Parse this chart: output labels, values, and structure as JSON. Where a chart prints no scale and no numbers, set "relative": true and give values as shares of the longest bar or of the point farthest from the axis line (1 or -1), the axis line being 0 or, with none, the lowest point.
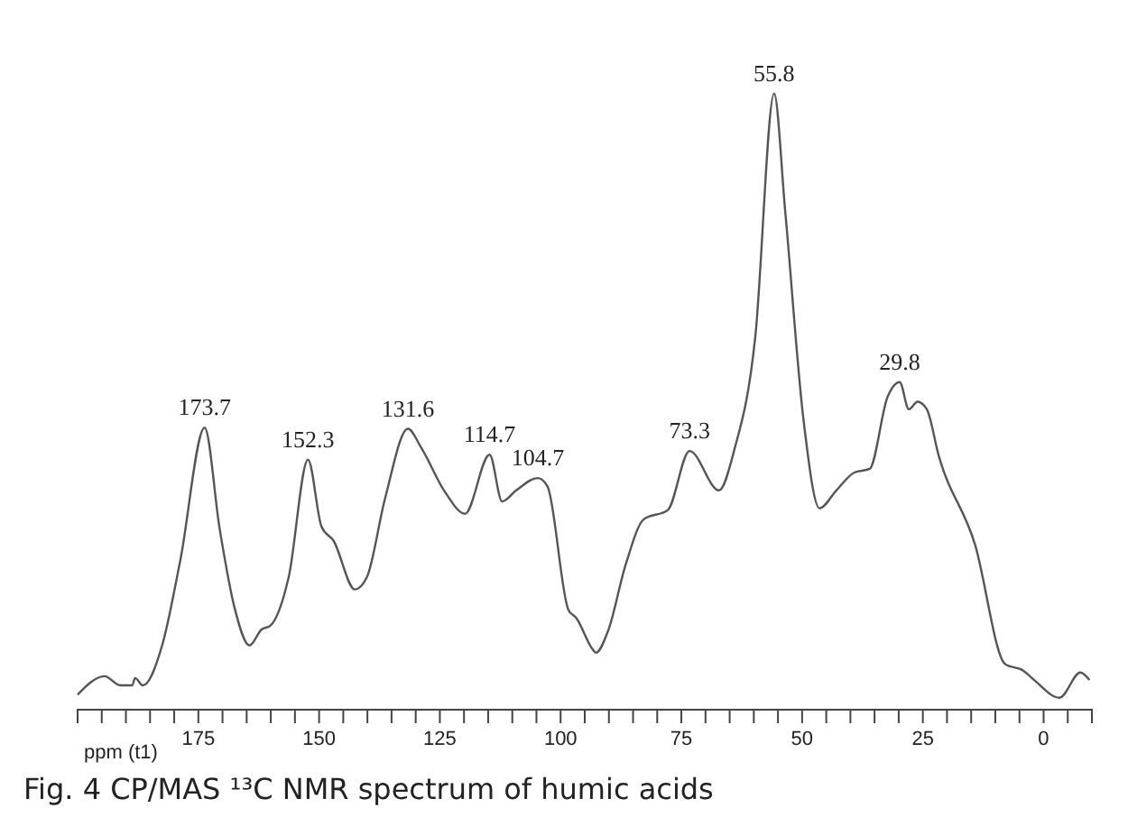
{
  "chart_data": {
    "type": "line",
    "relative": true,
    "xlabel": "ppm (t1)",
    "xlim": [
      200,
      -10
    ],
    "xticks": [
      {
        "value": 200,
        "label": null
      },
      {
        "value": 195,
        "label": null
      },
      {
        "value": 190,
        "label": null
      },
      {
        "value": 185,
        "label": null
      },
      {
        "value": 180,
        "label": null
      },
      175,
      {
        "value": 170,
        "label": null
      },
      {
        "value": 165,
        "label": null
      },
      {
        "value": 160,
        "label": null
      },
      {
        "value": 155,
        "label": null
      },
      150,
      {
        "value": 145,
        "label": null
      },
      {
        "value": 140,
        "label": null
      },
      {
        "value": 135,
        "label": null
      },
      {
        "value": 130,
        "label": null
      },
      125,
      {
        "value": 120,
        "label": null
      },
      {
        "value": 115,
        "label": null
      },
      {
        "value": 110,
        "label": null
      },
      {
        "value": 105,
        "label": null
      },
      100,
      {
        "value": 95,
        "label": null
      },
      {
        "value": 90,
        "label": null
      },
      {
        "value": 85,
        "label": null
      },
      {
        "value": 80,
        "label": null
      },
      75,
      {
        "value": 70,
        "label": null
      },
      {
        "value": 65,
        "label": null
      },
      {
        "value": 60,
        "label": null
      },
      {
        "value": 55,
        "label": null
      },
      50,
      {
        "value": 45,
        "label": null
      },
      {
        "value": 40,
        "label": null
      },
      {
        "value": 35,
        "label": null
      },
      {
        "value": 30,
        "label": null
      },
      25,
      {
        "value": 20,
        "label": null
      },
      {
        "value": 15,
        "label": null
      },
      {
        "value": 10,
        "label": null
      },
      {
        "value": 5,
        "label": null
      },
      0,
      {
        "value": -5,
        "label": null
      },
      {
        "value": -10,
        "label": null
      }
    ],
    "x": [
      200.0,
      194.4,
      191.2,
      188.7,
      188.1,
      186.5,
      182.5,
      178.7,
      173.7,
      170.6,
      167.5,
      164.4,
      161.9,
      160.1,
      156.3,
      152.3,
      149.5,
      147.0,
      142.6,
      140.1,
      136.4,
      131.6,
      128.9,
      123.9,
      119.8,
      114.7,
      112.1,
      109.2,
      104.7,
      102.7,
      98.4,
      96.7,
      93.4,
      92.7,
      90.2,
      86.5,
      82.8,
      77.8,
      73.3,
      67.2,
      64.1,
      59.7,
      55.8,
      53.5,
      49.7,
      46.4,
      42.9,
      39.2,
      36.0,
      32.3,
      29.8,
      27.9,
      26.1,
      24.2,
      21.7,
      14.2,
      8.0,
      4.2,
      2.0,
      -3.3,
      -7.6,
      -9.5
    ],
    "series": [
      {
        "color": "#555555",
        "values": [
          0.023,
          0.053,
          0.038,
          0.038,
          0.05,
          0.038,
          0.103,
          0.243,
          0.457,
          0.293,
          0.164,
          0.103,
          0.129,
          0.135,
          0.214,
          0.405,
          0.296,
          0.273,
          0.194,
          0.214,
          0.34,
          0.455,
          0.425,
          0.352,
          0.317,
          0.413,
          0.337,
          0.355,
          0.375,
          0.361,
          0.161,
          0.147,
          0.097,
          0.091,
          0.126,
          0.235,
          0.308,
          0.323,
          0.419,
          0.355,
          0.419,
          0.604,
          1.0,
          0.809,
          0.469,
          0.326,
          0.355,
          0.384,
          0.39,
          0.507,
          0.531,
          0.487,
          0.499,
          0.487,
          0.411,
          0.267,
          0.073,
          0.062,
          0.047,
          0.018,
          0.059,
          0.047
        ]
      }
    ],
    "annotations": [
      {
        "text": "173.7",
        "x": 173.7,
        "y": 0.457
      },
      {
        "text": "152.3",
        "x": 152.3,
        "y": 0.405
      },
      {
        "text": "131.6",
        "x": 131.6,
        "y": 0.455
      },
      {
        "text": "114.7",
        "x": 114.7,
        "y": 0.413
      },
      {
        "text": "104.7",
        "x": 104.7,
        "y": 0.375
      },
      {
        "text": "73.3",
        "x": 73.3,
        "y": 0.419
      },
      {
        "text": "55.8",
        "x": 55.8,
        "y": 1.0
      },
      {
        "text": "29.8",
        "x": 29.8,
        "y": 0.531
      },
      "Fig. 4 CP/MAS ¹³C NMR spectrum of humic acids"
    ],
    "grid": false
  }
}
